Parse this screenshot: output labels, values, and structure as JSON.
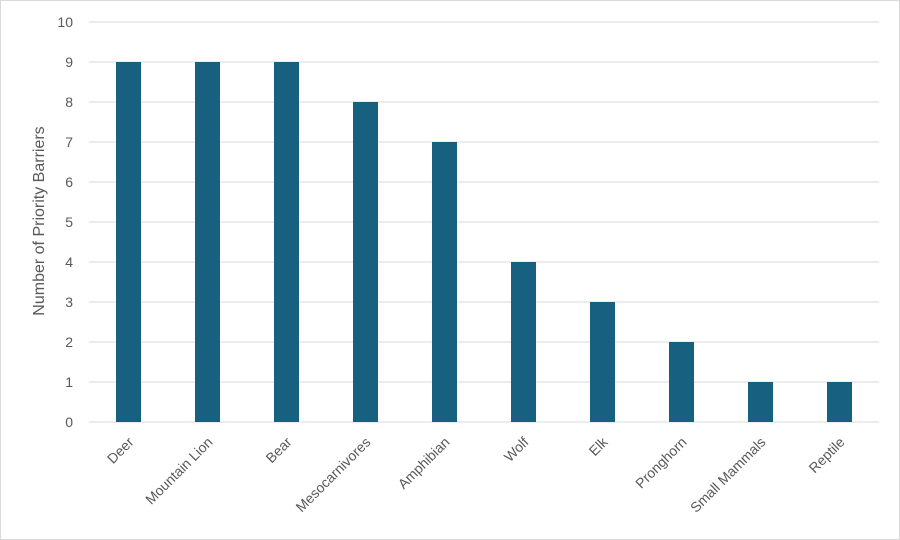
{
  "chart_data": {
    "type": "bar",
    "categories": [
      "Deer",
      "Mountain Lion",
      "Bear",
      "Mesocarnivores",
      "Amphibian",
      "Wolf",
      "Elk",
      "Pronghorn",
      "Small Mammals",
      "Reptile"
    ],
    "values": [
      9,
      9,
      9,
      8,
      7,
      4,
      3,
      2,
      1,
      1
    ],
    "title": "",
    "xlabel": "",
    "ylabel": "Number of Priority Barriers",
    "ylim": [
      0,
      10
    ],
    "yticks": [
      "0",
      "1",
      "2",
      "3",
      "4",
      "5",
      "6",
      "7",
      "8",
      "9",
      "10"
    ],
    "grid": true,
    "bar_color": "#17607f"
  }
}
